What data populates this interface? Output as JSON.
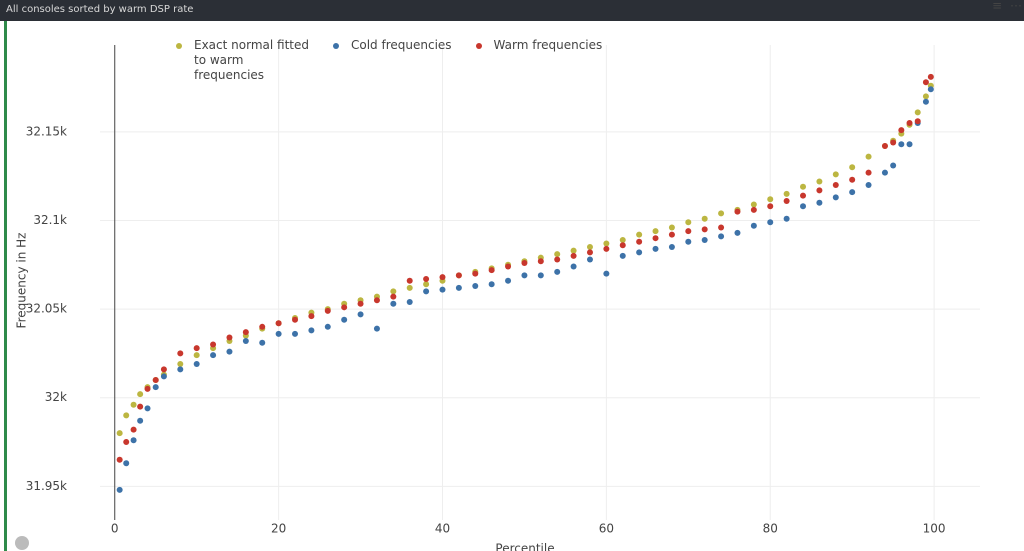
{
  "header": {
    "title": "All consoles sorted by warm DSP rate"
  },
  "chart_data": {
    "type": "scatter",
    "x_label": "Percentile",
    "y_label": "Frequency in Hz",
    "x": [
      0.6,
      1.4,
      2.3,
      3.1,
      4,
      5,
      6,
      8,
      10,
      12,
      14,
      16,
      18,
      20,
      22,
      24,
      26,
      28,
      30,
      32,
      34,
      36,
      38,
      40,
      42,
      44,
      46,
      48,
      50,
      52,
      54,
      56,
      58,
      60,
      62,
      64,
      66,
      68,
      70,
      72,
      74,
      76,
      78,
      80,
      82,
      84,
      86,
      88,
      90,
      92,
      94,
      95,
      96,
      97,
      98,
      99,
      99.6
    ],
    "series": [
      {
        "name": "Exact normal fitted to warm frequencies",
        "color": "#bcb641",
        "values": [
          31980,
          31990,
          31996,
          32002,
          32006,
          32010,
          32013,
          32019,
          32024,
          32028,
          32032,
          32035,
          32039,
          32042,
          32045,
          32048,
          32050,
          32053,
          32055,
          32057,
          32060,
          32062,
          32064,
          32066,
          32069,
          32071,
          32073,
          32075,
          32077,
          32079,
          32081,
          32083,
          32085,
          32087,
          32089,
          32092,
          32094,
          32096,
          32099,
          32101,
          32104,
          32106,
          32109,
          32112,
          32115,
          32119,
          32122,
          32126,
          32130,
          32136,
          32142,
          32145,
          32149,
          32154,
          32161,
          32170,
          32176
        ]
      },
      {
        "name": "Cold frequencies",
        "color": "#3d72a8",
        "values": [
          31948,
          31963,
          31976,
          31987,
          31994,
          32006,
          32012,
          32016,
          32019,
          32024,
          32026,
          32032,
          32031,
          32036,
          32036,
          32038,
          32040,
          32044,
          32047,
          32039,
          32053,
          32054,
          32060,
          32061,
          32062,
          32063,
          32064,
          32066,
          32069,
          32069,
          32071,
          32074,
          32078,
          32070,
          32080,
          32082,
          32084,
          32085,
          32088,
          32089,
          32091,
          32093,
          32097,
          32099,
          32101,
          32108,
          32110,
          32113,
          32116,
          32120,
          32127,
          32131,
          32143,
          32143,
          32155,
          32167,
          32174
        ]
      },
      {
        "name": "Warm frequencies",
        "color": "#c8372d",
        "values": [
          31965,
          31975,
          31982,
          31995,
          32005,
          32010,
          32016,
          32025,
          32028,
          32030,
          32034,
          32037,
          32040,
          32042,
          32044,
          32046,
          32049,
          32051,
          32053,
          32055,
          32057,
          32066,
          32067,
          32068,
          32069,
          32070,
          32072,
          32074,
          32076,
          32077,
          32078,
          32080,
          32082,
          32084,
          32086,
          32088,
          32090,
          32092,
          32094,
          32095,
          32096,
          32105,
          32106,
          32108,
          32111,
          32114,
          32117,
          32120,
          32123,
          32127,
          32142,
          32144,
          32151,
          32155,
          32156,
          32178,
          32181
        ]
      }
    ],
    "xlim": [
      -1.8,
      105.6
    ],
    "xticks": [
      0,
      20,
      40,
      60,
      80,
      100
    ],
    "ylim": [
      31931,
      32199
    ],
    "yticks": [
      {
        "value": 31950,
        "label": "31.95k"
      },
      {
        "value": 32000,
        "label": "32k"
      },
      {
        "value": 32050,
        "label": "32.05k"
      },
      {
        "value": 32100,
        "label": "32.1k"
      },
      {
        "value": 32150,
        "label": "32.15k"
      }
    ],
    "grid": true
  }
}
